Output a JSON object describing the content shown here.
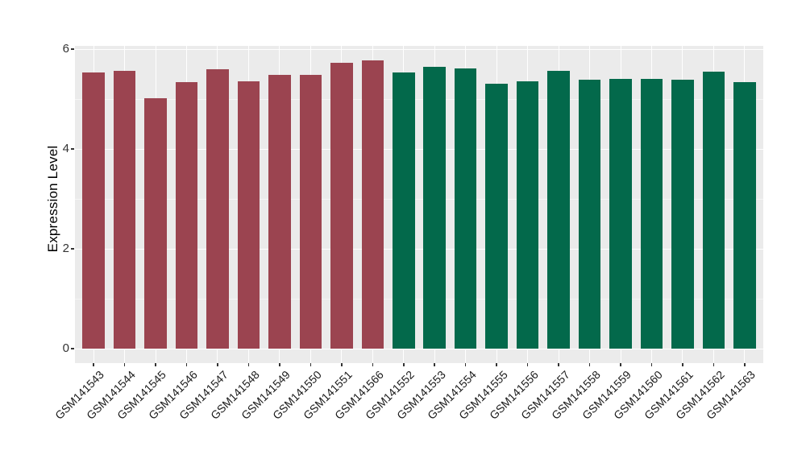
{
  "chart_data": {
    "type": "bar",
    "title": "",
    "xlabel": "",
    "ylabel": "Expression Level",
    "categories": [
      "GSM141543",
      "GSM141544",
      "GSM141545",
      "GSM141546",
      "GSM141547",
      "GSM141548",
      "GSM141549",
      "GSM141550",
      "GSM141551",
      "GSM141566",
      "GSM141552",
      "GSM141553",
      "GSM141554",
      "GSM141555",
      "GSM141556",
      "GSM141557",
      "GSM141558",
      "GSM141559",
      "GSM141560",
      "GSM141561",
      "GSM141562",
      "GSM141563"
    ],
    "values": [
      5.53,
      5.57,
      5.02,
      5.34,
      5.6,
      5.36,
      5.49,
      5.48,
      5.73,
      5.78,
      5.54,
      5.64,
      5.62,
      5.3,
      5.36,
      5.56,
      5.38,
      5.41,
      5.41,
      5.38,
      5.55,
      5.34
    ],
    "groups": [
      "group1",
      "group1",
      "group1",
      "group1",
      "group1",
      "group1",
      "group1",
      "group1",
      "group1",
      "group1",
      "group2",
      "group2",
      "group2",
      "group2",
      "group2",
      "group2",
      "group2",
      "group2",
      "group2",
      "group2",
      "group2",
      "group2"
    ],
    "group_colors": {
      "group1": "#9B4450",
      "group2": "#03694B"
    },
    "ylim": [
      0,
      6.07
    ],
    "yticks": [
      0,
      2,
      4,
      6
    ],
    "ytick_labels": [
      "0",
      "2",
      "4",
      "6"
    ],
    "yticks_minor": [
      1,
      3,
      5
    ],
    "x_tick_rotation_deg": 45,
    "legend": "none",
    "grid": true,
    "panel_bg": "#EBEBEB",
    "gridline_major_color": "#FFFFFF",
    "plot_bg": "#FFFFFF"
  }
}
